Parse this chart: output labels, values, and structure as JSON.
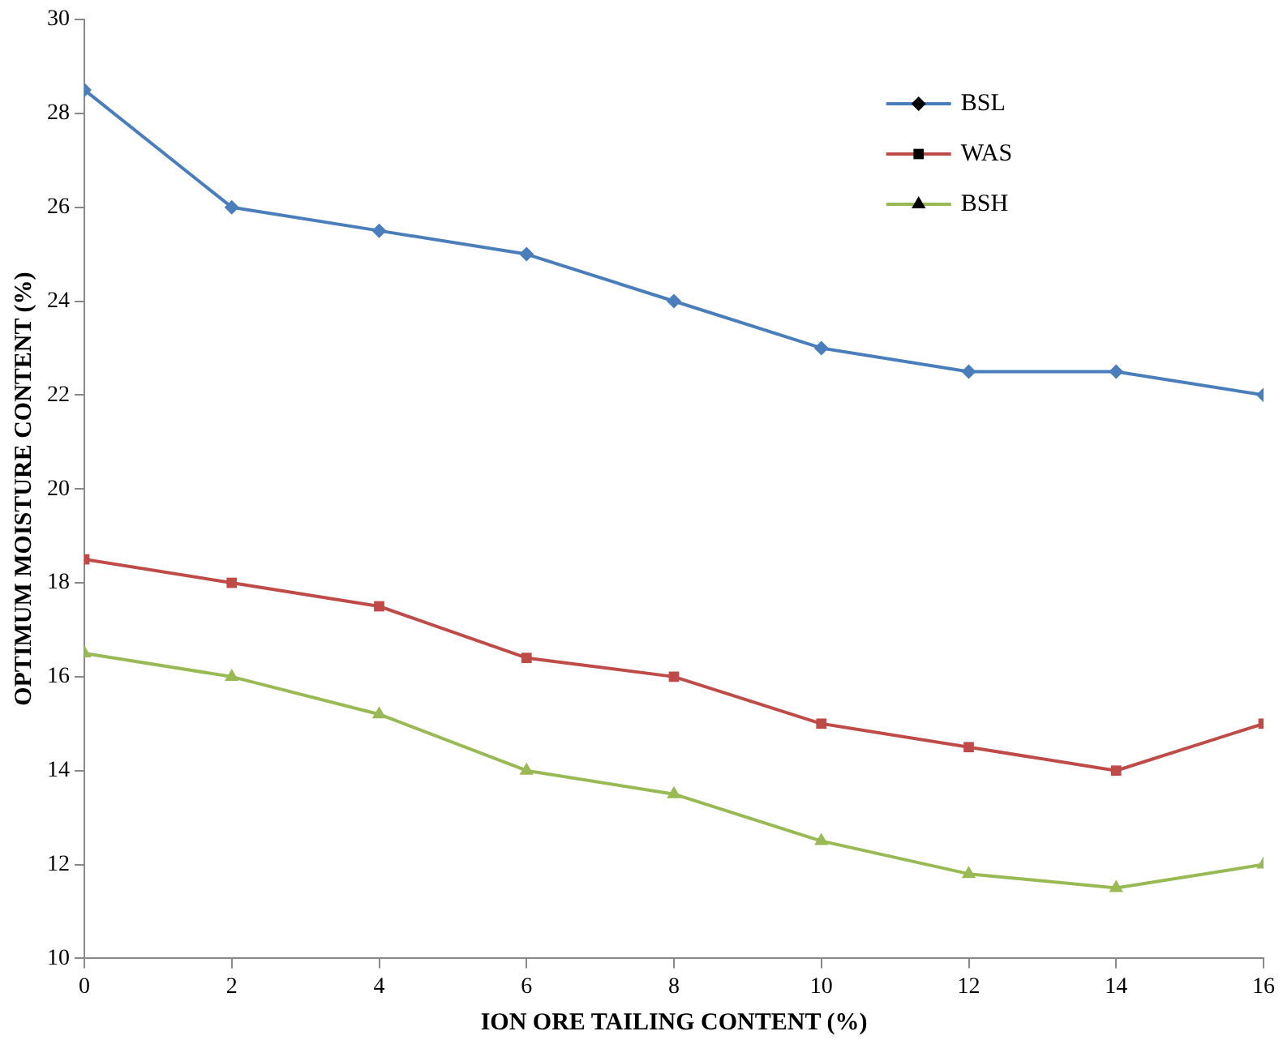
{
  "chart_data": {
    "type": "line",
    "xlabel": "ION ORE TAILING CONTENT (%)",
    "ylabel": "OPTIMUM MOISTURE CONTENT (%)",
    "x": [
      0,
      2,
      4,
      6,
      8,
      10,
      12,
      14,
      16
    ],
    "series": [
      {
        "name": "BSL",
        "color": "#4a7ebb",
        "marker": "diamond",
        "values": [
          28.5,
          26,
          25.5,
          25,
          24,
          23,
          22.5,
          22.5,
          22
        ]
      },
      {
        "name": "WAS",
        "color": "#be4b48",
        "marker": "square",
        "values": [
          18.5,
          18,
          17.5,
          16.4,
          16,
          15,
          14.5,
          14,
          15
        ]
      },
      {
        "name": "BSH",
        "color": "#98b954",
        "marker": "triangle",
        "values": [
          16.5,
          16,
          15.2,
          14,
          13.5,
          12.5,
          11.8,
          11.5,
          12
        ]
      }
    ],
    "xlim": [
      0,
      16
    ],
    "xticks": [
      0,
      2,
      4,
      6,
      8,
      10,
      12,
      14,
      16
    ],
    "ylim": [
      10,
      30
    ],
    "yticks": [
      10,
      12,
      14,
      16,
      18,
      20,
      22,
      24,
      26,
      28,
      30
    ],
    "grid": false,
    "legend": "top right",
    "line_style": "solid"
  }
}
